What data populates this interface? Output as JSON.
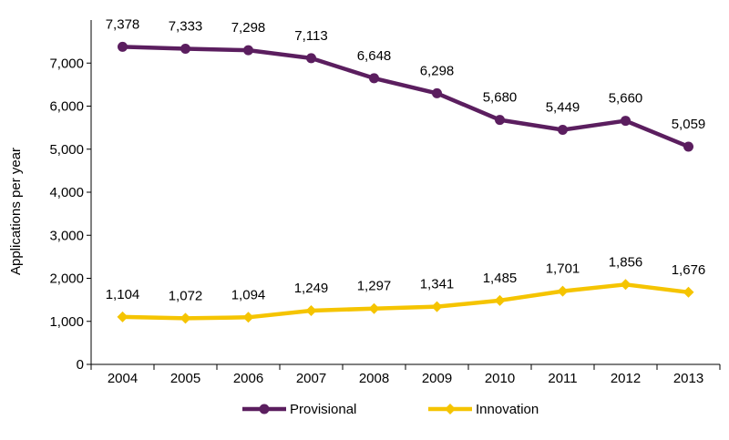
{
  "chart_data": {
    "type": "line",
    "title": "",
    "xlabel": "",
    "ylabel": "Applications per year",
    "ylim": [
      0,
      7000
    ],
    "yticks": [
      0,
      1000,
      2000,
      3000,
      4000,
      5000,
      6000,
      7000
    ],
    "ytick_labels": [
      "0",
      "1,000",
      "2,000",
      "3,000",
      "4,000",
      "5,000",
      "6,000",
      "7,000"
    ],
    "grid": false,
    "legend_position": "bottom",
    "categories": [
      "2004",
      "2005",
      "2006",
      "2007",
      "2008",
      "2009",
      "2010",
      "2011",
      "2012",
      "2013"
    ],
    "series": [
      {
        "name": "Provisional",
        "color": "#5B1E5F",
        "marker": "circle",
        "values": [
          7378,
          7333,
          7298,
          7113,
          6648,
          6298,
          5680,
          5449,
          5660,
          5059
        ],
        "labels": [
          "7,378",
          "7,333",
          "7,298",
          "7,113",
          "6,648",
          "6,298",
          "5,680",
          "5,449",
          "5,660",
          "5,059"
        ]
      },
      {
        "name": "Innovation",
        "color": "#F5C400",
        "marker": "diamond",
        "values": [
          1104,
          1072,
          1094,
          1249,
          1297,
          1341,
          1485,
          1701,
          1856,
          1676
        ],
        "labels": [
          "1,104",
          "1,072",
          "1,094",
          "1,249",
          "1,297",
          "1,341",
          "1,485",
          "1,701",
          "1,856",
          "1,676"
        ]
      }
    ]
  }
}
